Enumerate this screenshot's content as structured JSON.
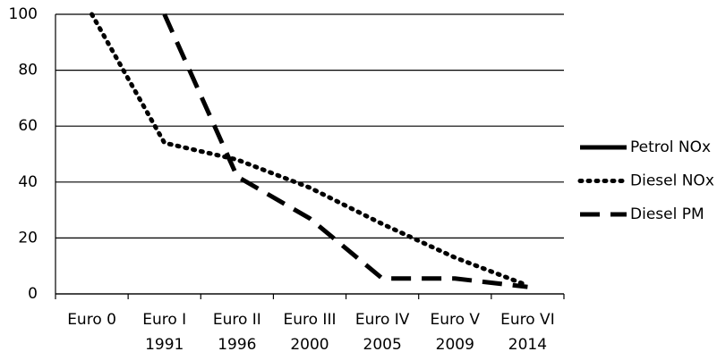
{
  "chart_data": {
    "type": "line",
    "categories": [
      "Euro 0",
      "Euro I",
      "Euro II",
      "Euro III",
      "Euro IV",
      "Euro V",
      "Euro VI"
    ],
    "category_years": [
      null,
      "1991",
      "1996",
      "2000",
      "2005",
      "2009",
      "2014"
    ],
    "series": [
      {
        "name": "Petrol NOx",
        "color": "#000000",
        "dash": "solid",
        "values": [
          null,
          null,
          null,
          null,
          null,
          null,
          null
        ]
      },
      {
        "name": "Diesel NOx",
        "color": "#000000",
        "dash": "dotted",
        "values": [
          100,
          54,
          48,
          38,
          25,
          13,
          3
        ]
      },
      {
        "name": "Diesel PM",
        "color": "#000000",
        "dash": "dashed",
        "values": [
          null,
          100,
          42,
          27,
          5.5,
          5.5,
          2.5
        ]
      }
    ],
    "ylim": [
      0,
      100
    ],
    "yticks": [
      0,
      20,
      40,
      60,
      80,
      100
    ],
    "grid": true,
    "legend": "right"
  }
}
